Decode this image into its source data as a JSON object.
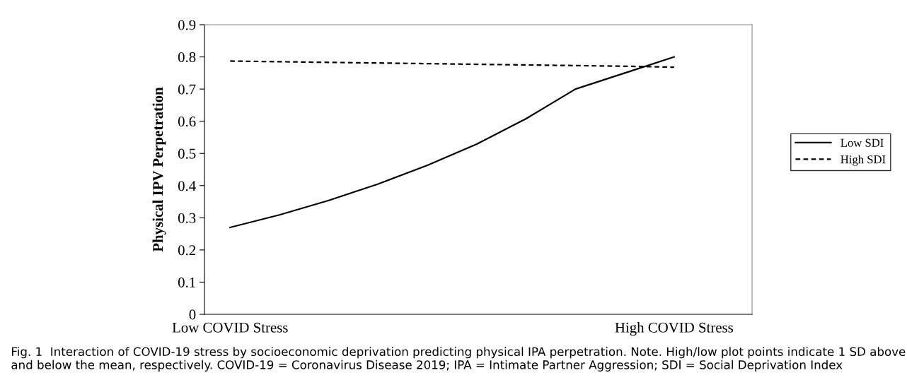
{
  "chart_data": {
    "type": "line",
    "ylabel": "Physical IPV Perpetration",
    "categories": [
      "Low COVID Stress",
      null,
      null,
      null,
      null,
      null,
      null,
      null,
      null,
      "High COVID Stress"
    ],
    "series": [
      {
        "name": "Low SDI",
        "color": "#000000",
        "line_style": "solid",
        "values": [
          0.27,
          0.309,
          0.354,
          0.405,
          0.463,
          0.529,
          0.608,
          0.7,
          0.75,
          0.8
        ]
      },
      {
        "name": "High SDI",
        "color": "#000000",
        "line_style": "dashed",
        "values": [
          0.787,
          0.785,
          0.783,
          0.781,
          0.779,
          0.777,
          0.775,
          0.773,
          0.771,
          0.768
        ]
      }
    ],
    "ylim": [
      0,
      0.9
    ],
    "yticks": [
      0,
      0.1,
      0.2,
      0.3,
      0.4,
      0.5,
      0.6,
      0.7,
      0.8,
      0.9
    ],
    "grid": false,
    "legend": "right",
    "marker": "none",
    "annotations": [
      "Fig. 1  Interaction of COVID-19 stress by socioeconomic deprivation predicting physical IPA perpetration. Note. High/low plot points indicate 1 SD above and below the mean, respectively. COVID-19 = Coronavirus Disease 2019; IPA = Intimate Partner Aggression; SDI = Social Deprivation Index"
    ]
  }
}
